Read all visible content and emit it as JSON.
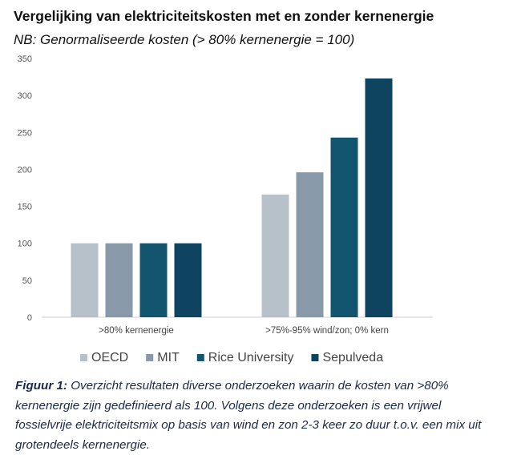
{
  "title": "Vergelijking van elektriciteitskosten met en zonder kernenergie",
  "subtitle": "NB: Genormaliseerde kosten (> 80% kernenergie = 100)",
  "chart_data": {
    "type": "bar",
    "categories": [
      ">80% kernenergie",
      ">75%-95% wind/zon; 0% kern"
    ],
    "series": [
      {
        "name": "OECD",
        "values": [
          100,
          166
        ],
        "color": "#b7c1c9"
      },
      {
        "name": "MIT",
        "values": [
          100,
          196
        ],
        "color": "#8899a9"
      },
      {
        "name": "Rice University",
        "values": [
          100,
          243
        ],
        "color": "#13546f"
      },
      {
        "name": "Sepulveda",
        "values": [
          100,
          323
        ],
        "color": "#0e4460"
      }
    ],
    "ylim": [
      0,
      350
    ],
    "yticks": [
      0,
      50,
      100,
      150,
      200,
      250,
      300,
      350
    ],
    "grid": false,
    "legend": "bottom"
  },
  "caption": {
    "label": "Figuur 1:",
    "text": " Overzicht resultaten diverse onderzoeken waarin de kosten van >80% kernenergie zijn gedefinieerd als 100. Volgens deze onderzoeken is een vrijwel fossielvrije elektriciteitsmix op basis van wind en zon 2-3 keer zo duur t.o.v. een mix uit grotendeels kernenergie."
  }
}
